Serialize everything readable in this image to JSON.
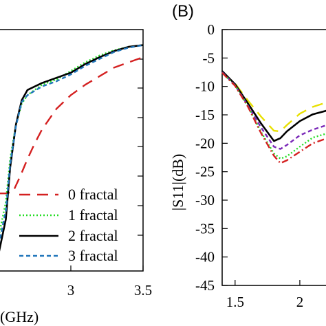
{
  "colors": {
    "frame": "#000000",
    "series_0": "#d42020",
    "series_1": "#22dd22",
    "series_2": "#000000",
    "series_3": "#2277bb",
    "series_purple": "#7a28b8",
    "series_yellow": "#e8e000"
  },
  "chart_data": [
    {
      "type": "line",
      "panel": "left (cropped)",
      "xlabel": "(GHz)",
      "xlim": [
        2.5,
        3.5
      ],
      "x_tick_labels": [
        "3",
        "3.5"
      ],
      "legend_placement": "bottom-right",
      "series": [
        {
          "name": "0 fractal",
          "style": "long-dash",
          "color": "#d42020",
          "points": [
            [
              2.5,
              -9.5
            ],
            [
              2.55,
              -9.5
            ],
            [
              2.6,
              -9.4
            ],
            [
              2.65,
              -8.5
            ],
            [
              2.7,
              -7.5
            ],
            [
              2.75,
              -6.6
            ],
            [
              2.8,
              -5.8
            ],
            [
              2.9,
              -4.6
            ],
            [
              3.0,
              -3.8
            ],
            [
              3.1,
              -3.2
            ],
            [
              3.2,
              -2.7
            ],
            [
              3.3,
              -2.2
            ],
            [
              3.4,
              -1.9
            ],
            [
              3.5,
              -1.6
            ]
          ]
        },
        {
          "name": "1 fractal",
          "style": "dotted",
          "color": "#22dd22",
          "points": [
            [
              2.5,
              -12
            ],
            [
              2.55,
              -10
            ],
            [
              2.58,
              -7.5
            ],
            [
              2.62,
              -5.5
            ],
            [
              2.66,
              -4.3
            ],
            [
              2.7,
              -3.8
            ],
            [
              2.8,
              -3.2
            ],
            [
              2.9,
              -2.9
            ],
            [
              3.0,
              -2.4
            ],
            [
              3.1,
              -1.9
            ],
            [
              3.2,
              -1.5
            ],
            [
              3.3,
              -1.2
            ],
            [
              3.4,
              -1.0
            ],
            [
              3.5,
              -0.9
            ]
          ]
        },
        {
          "name": "2 fractal",
          "style": "solid",
          "color": "#000000",
          "points": [
            [
              2.5,
              -13
            ],
            [
              2.55,
              -11
            ],
            [
              2.58,
              -8
            ],
            [
              2.62,
              -5.5
            ],
            [
              2.66,
              -4.1
            ],
            [
              2.7,
              -3.5
            ],
            [
              2.8,
              -3.1
            ],
            [
              2.9,
              -2.8
            ],
            [
              3.0,
              -2.5
            ],
            [
              3.1,
              -2.0
            ],
            [
              3.2,
              -1.6
            ],
            [
              3.3,
              -1.25
            ],
            [
              3.4,
              -1.0
            ],
            [
              3.5,
              -0.9
            ]
          ]
        },
        {
          "name": "3 fractal",
          "style": "short-dash",
          "color": "#2277bb",
          "points": [
            [
              2.5,
              -12.5
            ],
            [
              2.55,
              -10.5
            ],
            [
              2.58,
              -7.8
            ],
            [
              2.62,
              -5.6
            ],
            [
              2.66,
              -4.2
            ],
            [
              2.7,
              -3.8
            ],
            [
              2.8,
              -3.3
            ],
            [
              2.9,
              -3.0
            ],
            [
              3.0,
              -2.6
            ],
            [
              3.1,
              -2.1
            ],
            [
              3.2,
              -1.7
            ],
            [
              3.3,
              -1.3
            ],
            [
              3.4,
              -1.05
            ],
            [
              3.5,
              -0.9
            ]
          ]
        }
      ]
    },
    {
      "type": "line",
      "panel": "right (cropped)",
      "panel_label": "(B)",
      "ylabel": "|S11|(dB)",
      "xlim": [
        1.4,
        2.25
      ],
      "ylim": [
        -45,
        0
      ],
      "y_ticks": [
        0,
        -5,
        -10,
        -15,
        -20,
        -25,
        -30,
        -35,
        -40,
        -45
      ],
      "y_tick_labels": [
        "0",
        "-5",
        "-10",
        "-15",
        "-20",
        "-25",
        "-30",
        "-35",
        "-40",
        "-45"
      ],
      "x_tick_labels": [
        "1.5",
        "2"
      ],
      "series": [
        {
          "style": "long-dash",
          "color": "#e8e000",
          "points": [
            [
              1.4,
              -7.5
            ],
            [
              1.5,
              -9.5
            ],
            [
              1.6,
              -12.5
            ],
            [
              1.7,
              -15.3
            ],
            [
              1.8,
              -17.8
            ],
            [
              1.85,
              -17.9
            ],
            [
              1.9,
              -16.8
            ],
            [
              2.0,
              -14.8
            ],
            [
              2.1,
              -13.6
            ],
            [
              2.25,
              -12.5
            ]
          ]
        },
        {
          "style": "solid",
          "color": "#000000",
          "points": [
            [
              1.4,
              -7.3
            ],
            [
              1.5,
              -9.6
            ],
            [
              1.6,
              -13.0
            ],
            [
              1.7,
              -16.5
            ],
            [
              1.8,
              -19.6
            ],
            [
              1.85,
              -19.1
            ],
            [
              1.9,
              -17.9
            ],
            [
              2.0,
              -16.1
            ],
            [
              2.1,
              -14.9
            ],
            [
              2.25,
              -14.0
            ]
          ]
        },
        {
          "style": "short-dash",
          "color": "#7a28b8",
          "points": [
            [
              1.4,
              -7.5
            ],
            [
              1.5,
              -9.8
            ],
            [
              1.6,
              -13.4
            ],
            [
              1.7,
              -17.2
            ],
            [
              1.8,
              -20.6
            ],
            [
              1.85,
              -21.0
            ],
            [
              1.9,
              -20.3
            ],
            [
              2.0,
              -18.6
            ],
            [
              2.1,
              -17.6
            ],
            [
              2.25,
              -16.5
            ]
          ]
        },
        {
          "style": "dotted",
          "color": "#22dd22",
          "points": [
            [
              1.4,
              -7.6
            ],
            [
              1.5,
              -9.8
            ],
            [
              1.6,
              -13.5
            ],
            [
              1.7,
              -18.0
            ],
            [
              1.8,
              -21.8
            ],
            [
              1.85,
              -22.7
            ],
            [
              1.9,
              -22.3
            ],
            [
              2.0,
              -20.6
            ],
            [
              2.1,
              -19.0
            ],
            [
              2.25,
              -18.0
            ]
          ]
        },
        {
          "style": "dash-dot",
          "color": "#d42020",
          "points": [
            [
              1.4,
              -7.6
            ],
            [
              1.5,
              -9.9
            ],
            [
              1.6,
              -13.6
            ],
            [
              1.7,
              -18.2
            ],
            [
              1.8,
              -22.2
            ],
            [
              1.85,
              -23.5
            ],
            [
              1.9,
              -23.0
            ],
            [
              2.0,
              -21.5
            ],
            [
              2.1,
              -20.0
            ],
            [
              2.25,
              -18.8
            ]
          ]
        }
      ]
    }
  ]
}
